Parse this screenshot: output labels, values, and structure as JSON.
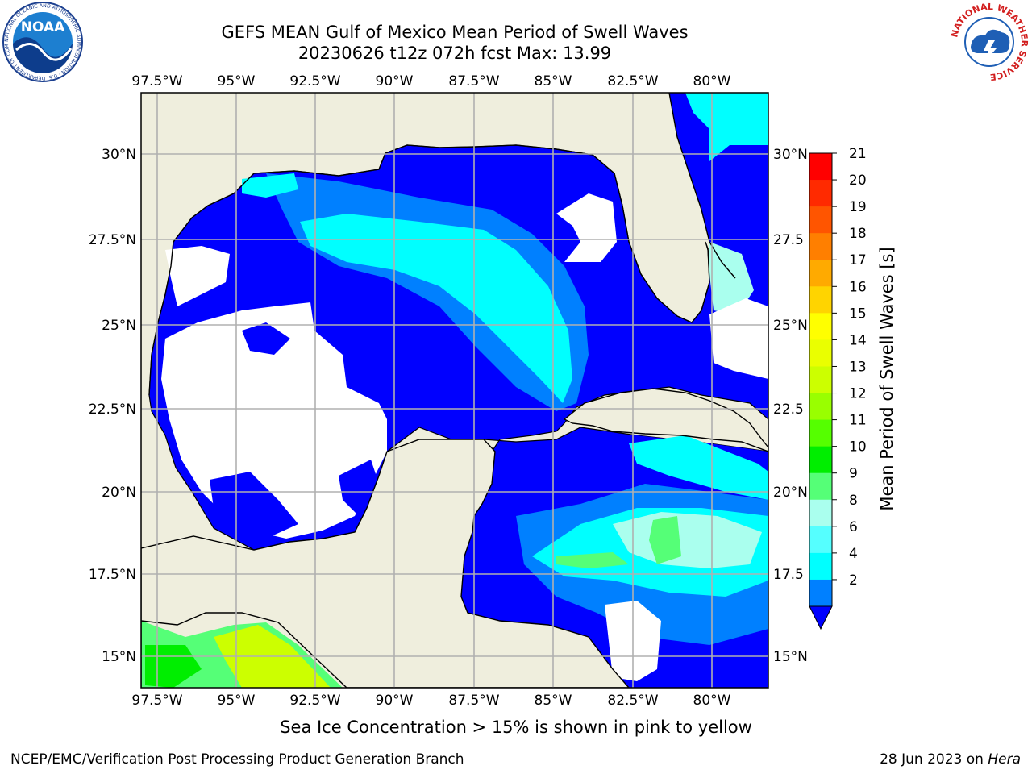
{
  "title": {
    "line1": "GEFS MEAN Gulf of Mexico Mean Period of Swell Waves",
    "line2": "20230626 t12z 072h fcst   Max: 13.99"
  },
  "map": {
    "lon_ticks": [
      "97.5°W",
      "95°W",
      "92.5°W",
      "90°W",
      "87.5°W",
      "85°W",
      "82.5°W",
      "80°W"
    ],
    "lat_ticks_left": [
      "30°N",
      "27.5°N",
      "25°N",
      "22.5°N",
      "20°N",
      "17.5°N",
      "15°N"
    ],
    "lat_ticks_right": [
      "30°N",
      "27.5",
      "25°N",
      "22.5",
      "20°N",
      "17.5",
      "15°N"
    ],
    "extent": {
      "lon_min": -98.0,
      "lon_max": -78.2,
      "lat_min": 14.0,
      "lat_max": 31.8
    }
  },
  "colorbar": {
    "label": "Mean Period of Swell Waves [s]",
    "ticks": [
      "21",
      "20",
      "19",
      "18",
      "17",
      "16",
      "15",
      "14",
      "13",
      "12",
      "11",
      "10",
      "9",
      "8",
      "6",
      "4",
      "2"
    ],
    "colors": [
      "#ff0000",
      "#ff2a00",
      "#ff5500",
      "#ff7f00",
      "#ffaa00",
      "#ffd400",
      "#ffff00",
      "#eaff00",
      "#ccff00",
      "#99ff00",
      "#55ff00",
      "#00ee00",
      "#55ff77",
      "#aaffee",
      "#55ffff",
      "#00ffff",
      "#0080ff"
    ],
    "under_color": "#0000ff",
    "land_color": "#efeedd"
  },
  "caption": "Sea Ice Concentration > 15% is shown in pink to yellow",
  "footer": {
    "left": "NCEP/EMC/Verification Post Processing Product Generation Branch",
    "right_date": "28 Jun 2023 on ",
    "right_host": "Hera"
  },
  "logos": {
    "noaa": "NOAA",
    "noaa_ring": "NATIONAL OCEANIC AND ATMOSPHERIC ADMINISTRATION · U.S. DEPARTMENT OF COMMERCE",
    "nws_ring": "NATIONAL WEATHER SERVICE"
  }
}
